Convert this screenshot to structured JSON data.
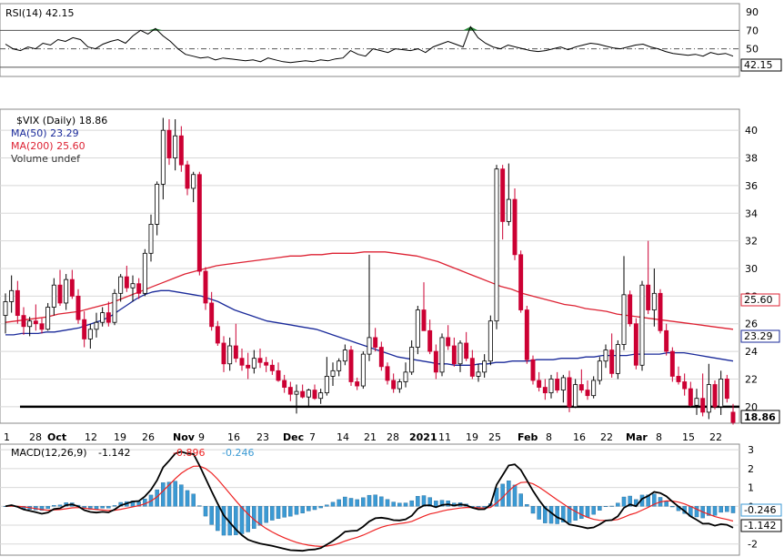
{
  "colors": {
    "up_candle": "#ffffff",
    "down_candle": "#cc0033",
    "candle_border": "#000000",
    "ma50": "#1a2a9a",
    "ma200": "#dd2233",
    "macd_line": "#000000",
    "macd_signal": "#ee2222",
    "macd_hist": "#3b9ad4",
    "rsi_line": "#000000",
    "rsi_fill": "#2a8a3a",
    "support_line": "#000000",
    "grid": "#d8d8d8"
  },
  "rsi_panel": {
    "legend_text": "RSI(14) 42.15",
    "current_tag": "42.15",
    "ticks": [
      "90",
      "70",
      "50",
      "30"
    ]
  },
  "price_panel": {
    "legend_symbol": "$VIX (Daily) 18.86",
    "legend_ma50": "MA(50) 23.29",
    "legend_ma200": "MA(200) 25.60",
    "legend_volume": "Volume undef",
    "ticks": [
      "40",
      "38",
      "36",
      "34",
      "32",
      "30",
      "28",
      "26",
      "24",
      "22",
      "20"
    ],
    "tag_ma200": "25.60",
    "tag_ma50": "23.29",
    "tag_close": "18.86"
  },
  "x_axis": {
    "labels": [
      "1",
      "28",
      "Oct",
      "12",
      "19",
      "26",
      "Nov",
      "9",
      "16",
      "23",
      "Dec",
      "7",
      "14",
      "21",
      "28",
      "2021",
      "11",
      "19",
      "25",
      "Feb",
      "8",
      "16",
      "22",
      "Mar",
      "8",
      "15",
      "22"
    ]
  },
  "macd_panel": {
    "legend_title": "MACD(12,26,9)",
    "legend_macd": "-1.142",
    "legend_signal": "-0.896",
    "legend_hist": "-0.246",
    "tag_hist": "-0.246",
    "tag_macd": "-1.142",
    "ticks": [
      "3",
      "2",
      "1",
      "0",
      "-1",
      "-2"
    ]
  },
  "chart_data": {
    "type": "candlestick",
    "symbol": "$VIX (Daily)",
    "price_ylim": [
      19,
      41
    ],
    "rsi_ylim": [
      20,
      95
    ],
    "macd_ylim": [
      -2.4,
      3.2
    ],
    "support_level": 20,
    "candles": [
      [
        26.6,
        28.2,
        25.3,
        27.6
      ],
      [
        27.6,
        29.5,
        26.8,
        28.4
      ],
      [
        28.4,
        29.1,
        26.0,
        26.6
      ],
      [
        26.6,
        27.2,
        25.2,
        25.8
      ],
      [
        25.8,
        26.5,
        25.1,
        26.2
      ],
      [
        26.2,
        27.4,
        25.5,
        26.0
      ],
      [
        26.0,
        26.4,
        25.3,
        25.6
      ],
      [
        25.6,
        27.5,
        25.5,
        27.2
      ],
      [
        27.2,
        29.3,
        26.6,
        28.8
      ],
      [
        28.8,
        29.9,
        27.3,
        27.5
      ],
      [
        27.5,
        29.6,
        27.0,
        29.2
      ],
      [
        29.2,
        29.9,
        27.8,
        28.0
      ],
      [
        28.0,
        28.5,
        26.0,
        26.3
      ],
      [
        26.3,
        26.9,
        24.3,
        24.9
      ],
      [
        24.9,
        26.0,
        24.2,
        25.6
      ],
      [
        25.6,
        26.8,
        25.0,
        26.1
      ],
      [
        26.1,
        27.2,
        25.8,
        26.8
      ],
      [
        26.8,
        27.6,
        25.8,
        26.1
      ],
      [
        26.1,
        28.5,
        25.9,
        28.2
      ],
      [
        28.2,
        29.6,
        27.6,
        29.4
      ],
      [
        29.4,
        30.2,
        28.3,
        28.6
      ],
      [
        28.6,
        29.5,
        27.6,
        28.9
      ],
      [
        28.9,
        29.3,
        27.8,
        28.2
      ],
      [
        28.2,
        31.4,
        28.0,
        31.1
      ],
      [
        31.1,
        33.9,
        30.5,
        33.2
      ],
      [
        33.2,
        36.3,
        32.4,
        36.1
      ],
      [
        36.1,
        40.9,
        35.0,
        40.0
      ],
      [
        40.0,
        40.8,
        37.5,
        38.0
      ],
      [
        38.0,
        40.8,
        37.1,
        39.6
      ],
      [
        39.6,
        40.3,
        37.0,
        37.5
      ],
      [
        37.5,
        37.8,
        35.3,
        35.8
      ],
      [
        35.8,
        37.0,
        34.8,
        36.8
      ],
      [
        36.8,
        37.0,
        29.5,
        29.8
      ],
      [
        29.8,
        30.1,
        27.0,
        27.5
      ],
      [
        27.5,
        28.3,
        25.5,
        25.8
      ],
      [
        25.8,
        26.2,
        24.4,
        24.6
      ],
      [
        24.6,
        25.1,
        22.5,
        23.1
      ],
      [
        23.1,
        25.0,
        22.6,
        24.4
      ],
      [
        24.4,
        26.0,
        23.2,
        23.5
      ],
      [
        23.5,
        24.2,
        22.6,
        23.0
      ],
      [
        23.0,
        23.9,
        22.0,
        22.8
      ],
      [
        22.8,
        24.1,
        22.4,
        23.5
      ],
      [
        23.5,
        24.2,
        22.8,
        23.2
      ],
      [
        23.2,
        23.6,
        22.5,
        23.0
      ],
      [
        23.0,
        23.4,
        22.3,
        22.6
      ],
      [
        22.6,
        23.2,
        21.8,
        21.9
      ],
      [
        21.9,
        22.3,
        21.0,
        21.4
      ],
      [
        21.4,
        21.8,
        20.4,
        20.9
      ],
      [
        20.9,
        21.6,
        19.5,
        21.1
      ],
      [
        21.1,
        21.6,
        20.6,
        20.7
      ],
      [
        20.7,
        21.3,
        20.0,
        21.2
      ],
      [
        21.2,
        21.6,
        20.5,
        20.6
      ],
      [
        20.6,
        21.3,
        20.2,
        21.0
      ],
      [
        21.0,
        23.6,
        20.8,
        22.2
      ],
      [
        22.2,
        23.2,
        21.5,
        22.6
      ],
      [
        22.6,
        23.5,
        22.2,
        23.3
      ],
      [
        23.3,
        24.5,
        23.0,
        24.1
      ],
      [
        24.1,
        24.4,
        21.5,
        21.8
      ],
      [
        21.8,
        22.1,
        21.2,
        21.5
      ],
      [
        21.5,
        24.0,
        21.3,
        23.8
      ],
      [
        23.8,
        31.0,
        23.3,
        25.0
      ],
      [
        25.0,
        25.7,
        24.0,
        24.3
      ],
      [
        24.3,
        24.7,
        22.6,
        22.9
      ],
      [
        22.9,
        23.2,
        21.6,
        21.9
      ],
      [
        21.9,
        22.4,
        21.0,
        21.3
      ],
      [
        21.3,
        22.0,
        21.0,
        21.8
      ],
      [
        21.8,
        23.2,
        21.4,
        22.5
      ],
      [
        22.5,
        24.8,
        22.3,
        24.3
      ],
      [
        24.3,
        27.3,
        23.8,
        27.0
      ],
      [
        27.0,
        29.0,
        25.5,
        25.5
      ],
      [
        25.5,
        26.3,
        23.8,
        24.0
      ],
      [
        24.0,
        24.5,
        22.0,
        22.5
      ],
      [
        22.5,
        25.3,
        22.2,
        25.0
      ],
      [
        25.0,
        25.9,
        24.1,
        24.4
      ],
      [
        24.4,
        25.0,
        22.9,
        23.1
      ],
      [
        23.1,
        24.8,
        22.5,
        24.6
      ],
      [
        24.6,
        25.4,
        23.3,
        23.5
      ],
      [
        23.5,
        24.1,
        22.0,
        22.2
      ],
      [
        22.2,
        23.1,
        21.8,
        22.5
      ],
      [
        22.5,
        23.8,
        22.1,
        23.3
      ],
      [
        23.3,
        26.6,
        23.0,
        26.2
      ],
      [
        26.2,
        37.5,
        25.6,
        37.2
      ],
      [
        37.2,
        37.5,
        32.1,
        33.4
      ],
      [
        33.4,
        37.6,
        33.1,
        35.0
      ],
      [
        35.0,
        35.8,
        30.6,
        31.0
      ],
      [
        31.0,
        31.3,
        26.8,
        27.0
      ],
      [
        27.0,
        27.3,
        23.1,
        23.4
      ],
      [
        23.4,
        23.7,
        21.6,
        21.9
      ],
      [
        21.9,
        22.5,
        21.1,
        21.4
      ],
      [
        21.4,
        22.0,
        20.5,
        21.0
      ],
      [
        21.0,
        22.3,
        20.6,
        22.0
      ],
      [
        22.0,
        22.5,
        21.0,
        21.2
      ],
      [
        21.2,
        22.3,
        20.3,
        22.1
      ],
      [
        22.1,
        22.6,
        19.6,
        20.0
      ],
      [
        20.0,
        22.0,
        19.9,
        21.6
      ],
      [
        21.6,
        22.7,
        21.0,
        21.2
      ],
      [
        21.2,
        21.9,
        20.5,
        20.8
      ],
      [
        20.8,
        22.2,
        20.6,
        21.9
      ],
      [
        21.9,
        23.6,
        21.6,
        23.3
      ],
      [
        23.3,
        24.5,
        22.8,
        24.1
      ],
      [
        24.1,
        25.3,
        22.1,
        22.4
      ],
      [
        22.4,
        24.8,
        22.0,
        24.5
      ],
      [
        24.5,
        30.9,
        24.1,
        28.1
      ],
      [
        28.1,
        28.4,
        25.8,
        26.0
      ],
      [
        26.0,
        26.4,
        22.7,
        23.0
      ],
      [
        23.0,
        29.1,
        22.6,
        28.8
      ],
      [
        28.8,
        32.0,
        26.7,
        27.0
      ],
      [
        27.0,
        30.0,
        25.8,
        28.2
      ],
      [
        28.2,
        28.5,
        25.3,
        25.5
      ],
      [
        25.5,
        26.0,
        23.7,
        24.0
      ],
      [
        24.0,
        24.3,
        21.8,
        22.2
      ],
      [
        22.2,
        22.9,
        21.6,
        21.8
      ],
      [
        21.8,
        22.4,
        20.8,
        21.3
      ],
      [
        21.3,
        21.8,
        20.0,
        20.1
      ],
      [
        20.1,
        21.3,
        19.4,
        20.6
      ],
      [
        20.6,
        22.4,
        19.3,
        19.6
      ],
      [
        19.6,
        23.1,
        19.1,
        21.6
      ],
      [
        21.6,
        21.9,
        19.8,
        20.0
      ],
      [
        20.0,
        22.6,
        19.4,
        22.0
      ],
      [
        22.0,
        22.3,
        20.3,
        20.6
      ],
      [
        19.6,
        20.2,
        18.7,
        18.86
      ]
    ],
    "ma50": [
      25.2,
      25.2,
      25.3,
      25.3,
      25.3,
      25.4,
      25.4,
      25.5,
      25.6,
      25.7,
      25.9,
      26.1,
      26.3,
      26.6,
      27.0,
      27.4,
      27.8,
      28.1,
      28.3,
      28.4,
      28.4,
      28.3,
      28.2,
      28.1,
      28.0,
      27.8,
      27.6,
      27.3,
      27.0,
      26.8,
      26.6,
      26.4,
      26.2,
      26.1,
      26.0,
      25.9,
      25.8,
      25.7,
      25.6,
      25.4,
      25.2,
      25.0,
      24.8,
      24.6,
      24.4,
      24.2,
      24.0,
      23.8,
      23.6,
      23.5,
      23.4,
      23.3,
      23.2,
      23.1,
      23.1,
      23.0,
      23.0,
      23.0,
      23.1,
      23.1,
      23.2,
      23.2,
      23.3,
      23.3,
      23.3,
      23.4,
      23.4,
      23.4,
      23.5,
      23.5,
      23.5,
      23.6,
      23.6,
      23.7,
      23.7,
      23.7,
      23.7,
      23.8,
      23.8,
      23.8,
      23.8,
      23.9,
      23.9,
      23.9,
      23.8,
      23.7,
      23.6,
      23.5,
      23.4,
      23.3
    ],
    "ma200": [
      26.1,
      26.2,
      26.3,
      26.4,
      26.5,
      26.7,
      26.8,
      26.9,
      27.1,
      27.3,
      27.5,
      27.8,
      28.1,
      28.4,
      28.7,
      29.0,
      29.3,
      29.6,
      29.8,
      30.0,
      30.2,
      30.3,
      30.4,
      30.5,
      30.6,
      30.7,
      30.8,
      30.9,
      30.9,
      31.0,
      31.0,
      31.1,
      31.1,
      31.1,
      31.2,
      31.2,
      31.2,
      31.1,
      31.0,
      30.9,
      30.7,
      30.5,
      30.2,
      29.9,
      29.6,
      29.3,
      29.0,
      28.7,
      28.5,
      28.2,
      28.0,
      27.8,
      27.6,
      27.4,
      27.3,
      27.1,
      27.0,
      26.9,
      26.7,
      26.6,
      26.5,
      26.4,
      26.3,
      26.2,
      26.1,
      26.0,
      25.9,
      25.8,
      25.7,
      25.6
    ],
    "rsi": [
      55,
      50,
      48,
      52,
      50,
      56,
      54,
      60,
      58,
      62,
      60,
      52,
      50,
      55,
      58,
      60,
      56,
      64,
      70,
      66,
      72,
      64,
      58,
      50,
      44,
      42,
      40,
      41,
      38,
      40,
      39,
      38,
      37,
      38,
      36,
      40,
      38,
      36,
      35,
      36,
      37,
      36,
      38,
      37,
      39,
      40,
      48,
      44,
      42,
      50,
      48,
      46,
      50,
      49,
      48,
      50,
      46,
      52,
      55,
      58,
      55,
      52,
      74,
      62,
      56,
      52,
      50,
      54,
      52,
      50,
      48,
      47,
      48,
      50,
      52,
      49,
      52,
      54,
      56,
      55,
      53,
      51,
      50,
      52,
      54,
      55,
      52,
      50,
      47,
      45,
      44,
      43,
      44,
      42,
      46,
      44,
      45,
      42
    ]
  }
}
